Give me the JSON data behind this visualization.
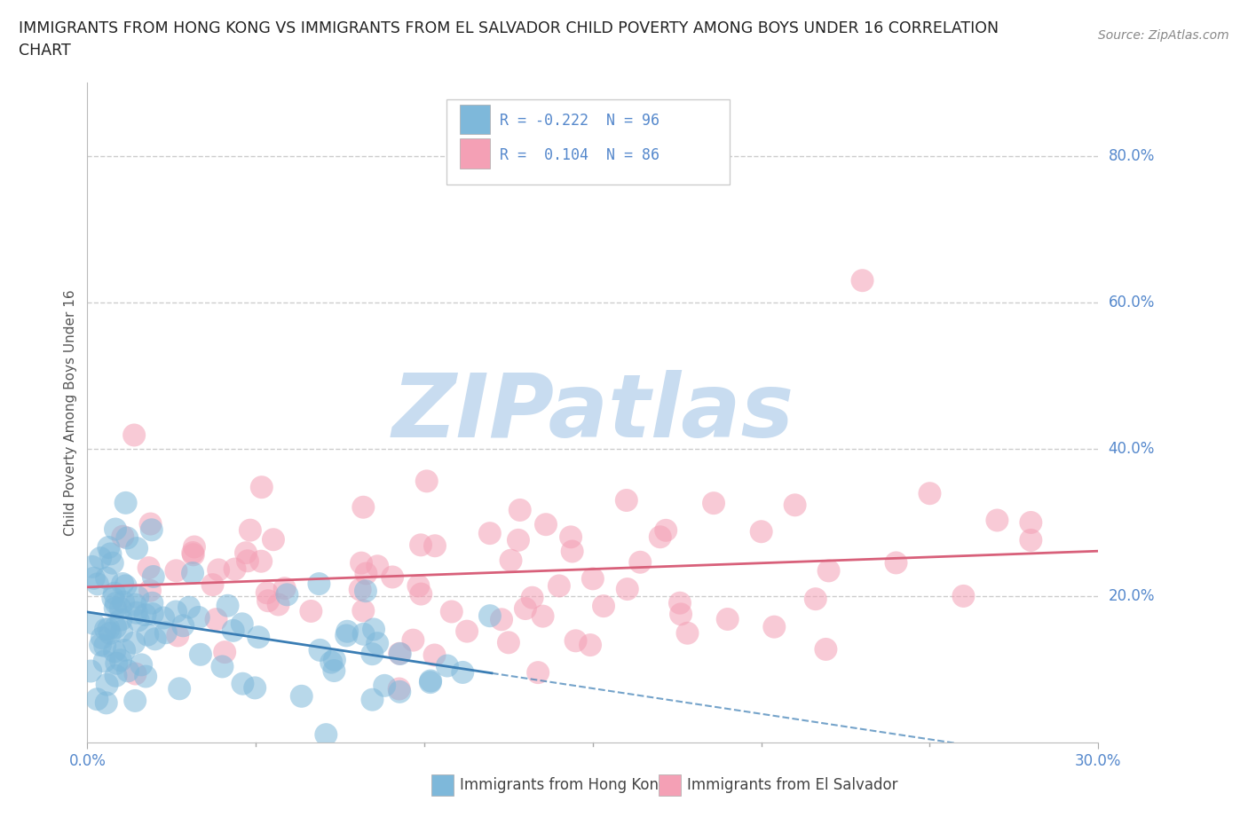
{
  "title_line1": "IMMIGRANTS FROM HONG KONG VS IMMIGRANTS FROM EL SALVADOR CHILD POVERTY AMONG BOYS UNDER 16 CORRELATION",
  "title_line2": "CHART",
  "source": "Source: ZipAtlas.com",
  "ylabel": "Child Poverty Among Boys Under 16",
  "ytick_vals": [
    0.8,
    0.6,
    0.4,
    0.2
  ],
  "ytick_labels": [
    "80.0%",
    "60.0%",
    "40.0%",
    "20.0%"
  ],
  "xtick_vals": [
    0.0,
    0.3
  ],
  "xtick_labels": [
    "0.0%",
    "30.0%"
  ],
  "hk_R": -0.222,
  "hk_N": 96,
  "es_R": 0.104,
  "es_N": 86,
  "hk_color": "#7EB8DA",
  "hk_edge_color": "#5A9DC0",
  "es_color": "#F4A0B5",
  "es_edge_color": "#D87090",
  "hk_line_color": "#3A7DB4",
  "es_line_color": "#D8607A",
  "watermark_color": "#C8DCF0",
  "xlim": [
    0.0,
    0.3
  ],
  "ylim": [
    0.0,
    0.9
  ],
  "grid_color": "#CCCCCC",
  "title_color": "#222222",
  "axis_label_color": "#5588CC",
  "ylabel_text_color": "#555555"
}
